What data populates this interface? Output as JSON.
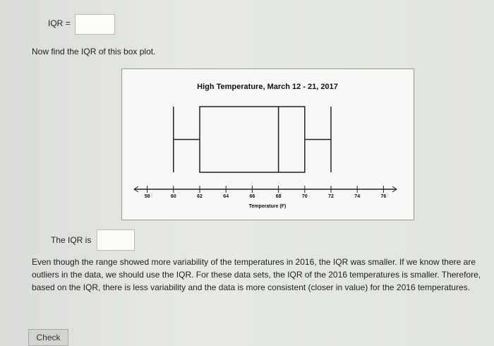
{
  "prompt": {
    "iqr_label": "IQR =",
    "instruction": "Now find the IQR of this box plot."
  },
  "chart_data": {
    "type": "box",
    "title": "High Temperature, March 12 - 21, 2017",
    "x_label": "Temperature (F)",
    "min": 60,
    "q1": 62,
    "median": 68,
    "q3": 70,
    "max": 72,
    "xlim": [
      57,
      77
    ],
    "xticks": [
      58,
      60,
      62,
      64,
      66,
      68,
      70,
      72,
      74,
      76
    ],
    "color": "#222222"
  },
  "answer": {
    "label": "The IQR is"
  },
  "explanation": "Even though the range showed more variability of the temperatures in 2016, the IQR was smaller. If we know there are outliers in the data, we should use the IQR. For these data sets, the IQR of the 2016 temperatures is smaller. Therefore, based on the IQR, there is less variability and the data is more consistent (closer in value) for the 2016 temperatures.",
  "button": "Check"
}
